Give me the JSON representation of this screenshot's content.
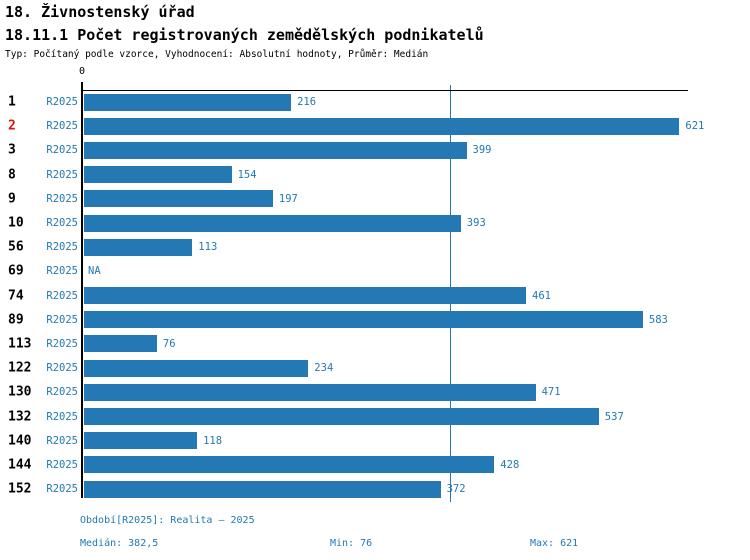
{
  "header": {
    "title": "18. Živnostenský úřad",
    "subtitle": "18.11.1 Počet registrovaných zemědělských podnikatelů",
    "meta": "Typ: Počítaný podle vzorce, Vyhodnocení: Absolutní hodnoty, Průměr: Medián"
  },
  "chart_data": {
    "type": "bar",
    "orientation": "horizontal",
    "title": "18.11.1 Počet registrovaných zemědělských podnikatelů",
    "series_label": "R2025",
    "categories": [
      "1",
      "2",
      "3",
      "8",
      "9",
      "10",
      "56",
      "69",
      "74",
      "89",
      "113",
      "122",
      "130",
      "132",
      "140",
      "144",
      "152"
    ],
    "values": [
      216,
      621,
      399,
      154,
      197,
      393,
      113,
      null,
      461,
      583,
      76,
      234,
      471,
      537,
      118,
      428,
      372
    ],
    "na_label": "NA",
    "highlighted_category": "2",
    "origin_tick_label": "0",
    "xlim": [
      0,
      630
    ],
    "median_value": 382.5,
    "grid": false,
    "legend_position": "none"
  },
  "footer": {
    "period": "Období[R2025]: Realita – 2025",
    "median": "Medián: 382,5",
    "min": "Min: 76",
    "max": "Max: 621"
  },
  "colors": {
    "bar": "#2478b4",
    "accent": "#2478b4",
    "highlight": "#e01111",
    "axis": "#000000"
  }
}
